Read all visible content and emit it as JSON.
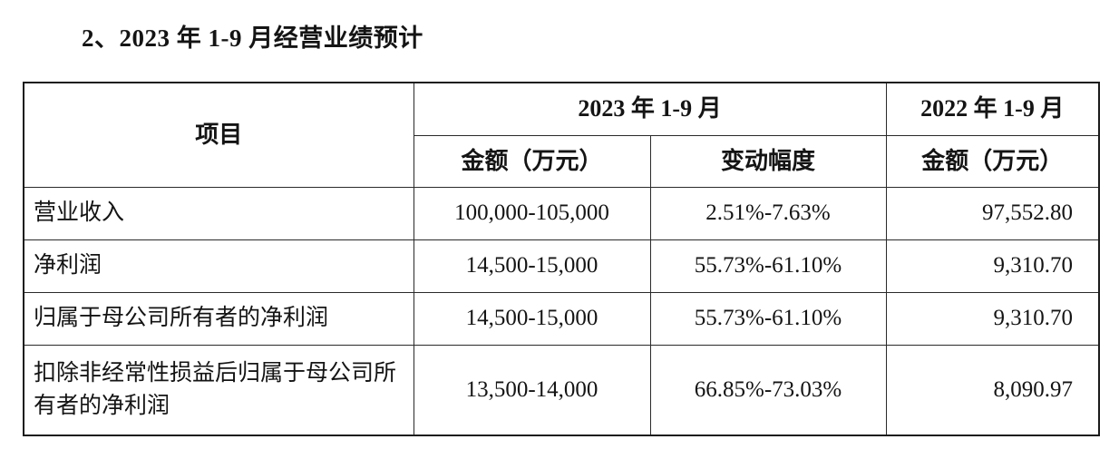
{
  "page": {
    "title": "2、2023 年 1-9 月经营业绩预计"
  },
  "table": {
    "header": {
      "col_item": "项目",
      "group_2023": "2023 年 1-9 月",
      "group_2022": "2022 年 1-9 月",
      "sub_amount_2023": "金额（万元）",
      "sub_change": "变动幅度",
      "sub_amount_2022": "金额（万元）"
    },
    "rows": [
      {
        "item": "营业收入",
        "amount_2023": "100,000-105,000",
        "change": "2.51%-7.63%",
        "amount_2022": "97,552.80"
      },
      {
        "item": "净利润",
        "amount_2023": "14,500-15,000",
        "change": "55.73%-61.10%",
        "amount_2022": "9,310.70"
      },
      {
        "item": "归属于母公司所有者的净利润",
        "amount_2023": "14,500-15,000",
        "change": "55.73%-61.10%",
        "amount_2022": "9,310.70"
      },
      {
        "item": "扣除非经常性损益后归属于母公司所有者的净利润",
        "amount_2023": "13,500-14,000",
        "change": "66.85%-73.03%",
        "amount_2022": "8,090.97"
      }
    ]
  }
}
